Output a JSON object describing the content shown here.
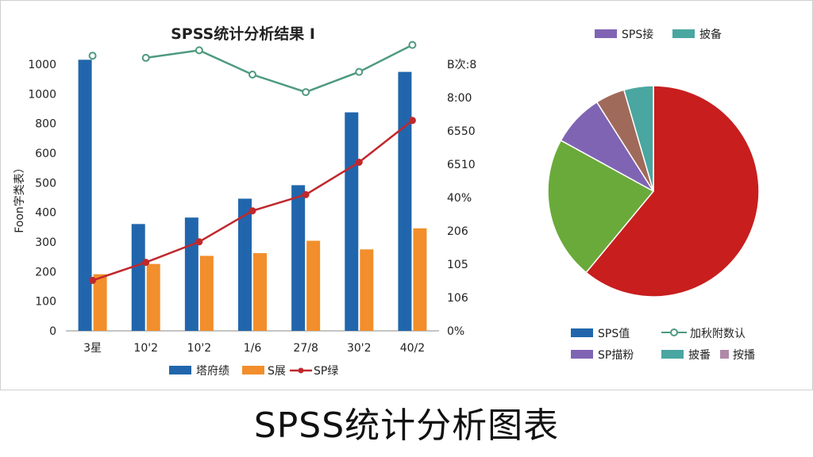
{
  "page_title": "SPSS统计分析图表",
  "colors": {
    "bar_blue": "#2166ac",
    "bar_orange": "#f28e2b",
    "line_red": "#c0282d",
    "line_green": "#4e9a7e",
    "pie_red": "#c81e1e",
    "pie_green": "#6aaa3a",
    "pie_purple": "#8064b4",
    "pie_brown": "#a06a5a",
    "pie_teal": "#4aa6a0"
  },
  "chart_data": [
    {
      "type": "bar",
      "title": "SPSS统计分析结果 I",
      "ylabel": "Foon字类表）",
      "ylim": [
        0,
        1000
      ],
      "y_ticks": [
        "0",
        "100",
        "200",
        "300",
        "400",
        "500",
        "600",
        "800",
        "1000",
        "1000"
      ],
      "y2_ticks": [
        "0%",
        "106",
        "105",
        "206",
        "40%",
        "6510",
        "6550",
        "8:00",
        "B次:8"
      ],
      "categories": [
        "3星",
        "10'2",
        "10'2",
        "1/6",
        "27/8",
        "30'2",
        "40/2"
      ],
      "series": [
        {
          "name": "塔府绩",
          "kind": "bar",
          "values": [
            1005,
            396,
            420,
            490,
            540,
            810,
            960
          ]
        },
        {
          "name": "S展",
          "kind": "bar",
          "values": [
            210,
            248,
            278,
            288,
            334,
            302,
            380
          ]
        },
        {
          "name": "SP绿",
          "kind": "line",
          "values": [
            187,
            254,
            330,
            445,
            505,
            625,
            780
          ]
        },
        {
          "name": "",
          "kind": "line",
          "values": [
            1020,
            1012,
            1040,
            950,
            885,
            960,
            1060
          ]
        }
      ],
      "legend_position": "bottom"
    },
    {
      "type": "pie",
      "legend_top": [
        "SPS接",
        "披备"
      ],
      "legend_bottom": [
        "SPS值",
        "加秋附数认",
        "SP描粉",
        "披番",
        "按播"
      ],
      "slices": [
        {
          "value": 61,
          "color": "#c81e1e"
        },
        {
          "value": 22,
          "color": "#6aaa3a"
        },
        {
          "value": 8,
          "color": "#8064b4"
        },
        {
          "value": 4.5,
          "color": "#a06a5a"
        },
        {
          "value": 4.5,
          "color": "#4aa6a0"
        }
      ]
    }
  ]
}
